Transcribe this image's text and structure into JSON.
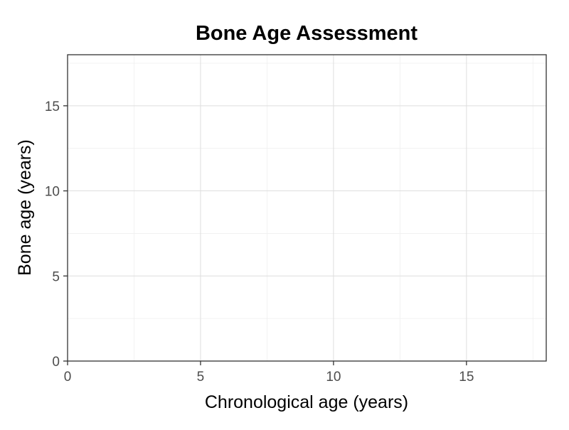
{
  "chart_data": {
    "type": "scatter",
    "title": "Bone Age Assessment",
    "xlabel": "Chronological age (years)",
    "ylabel": "Bone age (years)",
    "xlim": [
      0,
      18
    ],
    "ylim": [
      0,
      18
    ],
    "x_ticks": [
      0,
      5,
      10,
      15
    ],
    "y_ticks": [
      0,
      5,
      10,
      15
    ],
    "x_minor_ticks": [
      2.5,
      7.5,
      12.5,
      17.5
    ],
    "y_minor_ticks": [
      2.5,
      7.5,
      12.5,
      17.5
    ],
    "grid": true,
    "series": [],
    "colors": {
      "background": "#ffffff",
      "panel_border": "#333333",
      "grid_major": "#dedede",
      "grid_minor": "#efefef",
      "tick_label": "#4d4d4d",
      "text": "#000000"
    }
  }
}
